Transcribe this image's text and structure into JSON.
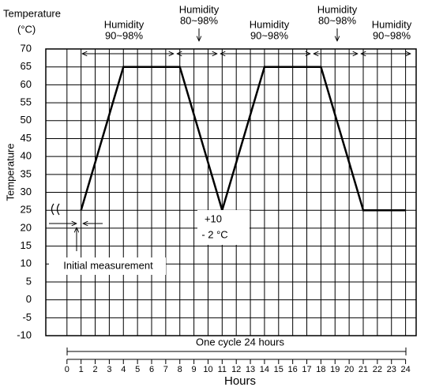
{
  "chart_data": {
    "type": "line",
    "title": "Temperature",
    "unit": "(°C)",
    "y_label": "Temperature",
    "x_label": "Hours",
    "x": [
      1,
      4,
      8,
      11,
      14,
      18,
      21,
      24
    ],
    "series": [
      {
        "name": "Temperature",
        "color": "#000000",
        "values": [
          25,
          65,
          65,
          25,
          65,
          65,
          25,
          25
        ]
      }
    ],
    "xlim": [
      -1.5,
      24.75
    ],
    "xticks": [
      0,
      1,
      2,
      3,
      4,
      5,
      6,
      7,
      8,
      9,
      10,
      11,
      12,
      13,
      14,
      15,
      16,
      17,
      18,
      19,
      20,
      21,
      22,
      23,
      24
    ],
    "ylim": [
      -10,
      70
    ],
    "yticks": [
      70,
      65,
      60,
      55,
      50,
      45,
      40,
      35,
      30,
      25,
      20,
      15,
      10,
      5,
      0,
      -5,
      -10
    ],
    "grid": true,
    "annotations": [
      "Humidity",
      "90~98%",
      "Humidity",
      "80~98%",
      "Humidity",
      "90~98%",
      "Humidity",
      "80~98%",
      "Humidity",
      "90~98%",
      "+10",
      "- 2 °C",
      "Initial measurement",
      "One cycle 24 hours"
    ]
  }
}
